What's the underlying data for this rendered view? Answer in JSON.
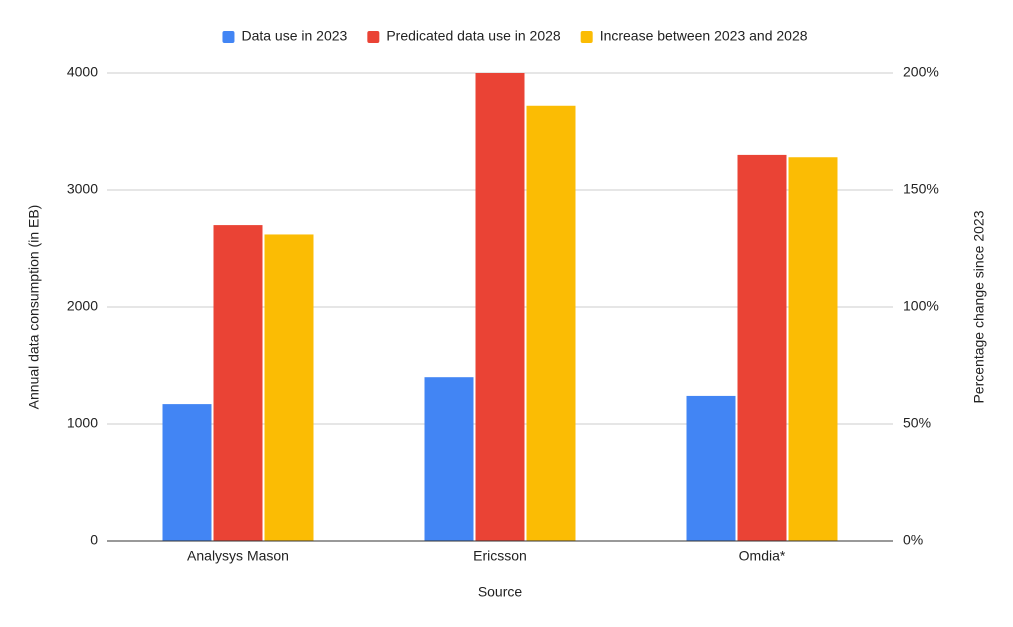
{
  "chart_data": {
    "type": "bar",
    "x_label": "Source",
    "y_label": "Annual data consumption (in EB)",
    "y2_label": "Percentage change since 2023",
    "categories": [
      "Analysys Mason",
      "Ericsson",
      "Omdia*"
    ],
    "series": [
      {
        "name": "Data use in 2023",
        "color": "#4285f4",
        "values": [
          1170,
          1400,
          1240
        ]
      },
      {
        "name": "Predicated data use in 2028",
        "color": "#ea4335",
        "values": [
          2700,
          4000,
          3300
        ]
      },
      {
        "name": "Increase between 2023 and 2028",
        "color": "#fbbc04",
        "values": [
          131,
          186,
          164
        ],
        "axis": "y2"
      }
    ],
    "ylim": [
      0,
      4000
    ],
    "yticks": [
      0,
      1000,
      2000,
      3000,
      4000
    ],
    "y2lim": [
      0,
      200
    ],
    "y2ticks": [
      {
        "value": 0,
        "label": "0%"
      },
      {
        "value": 50,
        "label": "50%"
      },
      {
        "value": 100,
        "label": "100%"
      },
      {
        "value": 150,
        "label": "150%"
      },
      {
        "value": 200,
        "label": "200%"
      }
    ],
    "grid": true,
    "legend": "top"
  }
}
